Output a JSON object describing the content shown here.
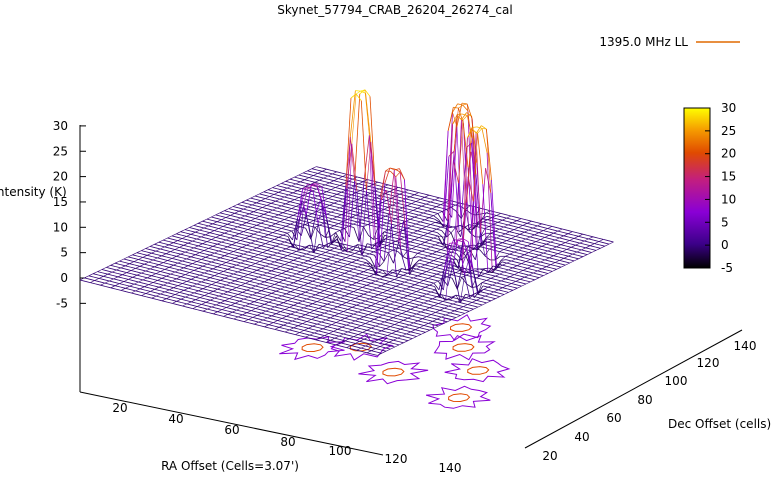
{
  "chart_data": {
    "type": "surface",
    "title": "Skynet_57794_CRAB_26204_26274_cal",
    "xlabel": "RA Offset (Cells=3.07')",
    "ylabel": "Dec Offset (cells)",
    "zlabel": "Intensity (K)",
    "legend": {
      "label": "1395.0 MHz LL",
      "placement": "top-right"
    },
    "x_ticks": [
      "20",
      "40",
      "60",
      "80",
      "100",
      "120",
      "140"
    ],
    "y_ticks": [
      "20",
      "40",
      "60",
      "80",
      "100",
      "120",
      "140"
    ],
    "z_ticks": [
      "30",
      "25",
      "20",
      "15",
      "10",
      "5",
      "0",
      "-5"
    ],
    "xlim": [
      0,
      150
    ],
    "ylim": [
      15,
      150
    ],
    "zlim": [
      -5,
      30
    ],
    "colorbar": {
      "ticks": [
        "30",
        "25",
        "20",
        "15",
        "10",
        "5",
        "0",
        "-5"
      ],
      "range": [
        -5,
        30
      ],
      "palette": [
        "#000000",
        "#3b0088",
        "#8a00d6",
        "#c21e80",
        "#e04a00",
        "#f59a00",
        "#ffff00"
      ]
    },
    "baseline_level": 0,
    "peaks": [
      {
        "x": 65,
        "y": 105,
        "peak": 28.5,
        "dip": -4
      },
      {
        "x": 92,
        "y": 92,
        "peak": 18,
        "dip": -3
      },
      {
        "x": 118,
        "y": 110,
        "peak": 26,
        "dip": -3
      },
      {
        "x": 98,
        "y": 125,
        "peak": 24,
        "dip": -3
      },
      {
        "x": 50,
        "y": 95,
        "peak": 10,
        "dip": -3
      },
      {
        "x": 130,
        "y": 85,
        "peak": 9,
        "dip": -3
      },
      {
        "x": 84,
        "y": 140,
        "peak": 22,
        "dip": -2
      }
    ]
  },
  "colors": {
    "surface": "#8a00d6",
    "contour": "#8a00d6",
    "legend_line": "#e06a00"
  }
}
